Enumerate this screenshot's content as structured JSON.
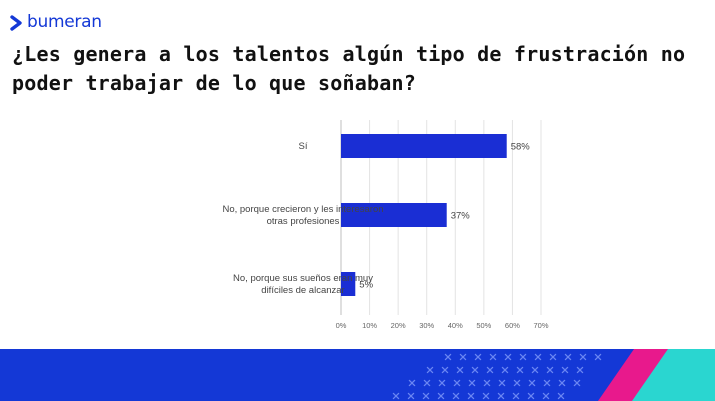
{
  "brand": {
    "name": "bumeran",
    "color": "#1438d6"
  },
  "title": "¿Les genera a los talentos algún tipo de frustración no poder trabajar de lo que soñaban?",
  "chart_data": {
    "type": "bar",
    "orientation": "horizontal",
    "categories": [
      [
        "Sí"
      ],
      [
        "No, porque crecieron y les interesaron",
        "otras profesiones"
      ],
      [
        "No, porque sus sueños eran muy",
        "difíciles de alcanzar"
      ]
    ],
    "values": [
      58,
      37,
      5
    ],
    "data_labels": [
      "58%",
      "37%",
      "5%"
    ],
    "xlim": [
      0,
      70
    ],
    "x_ticks": [
      0,
      10,
      20,
      30,
      40,
      50,
      60,
      70
    ],
    "x_tick_labels": [
      "0%",
      "10%",
      "20%",
      "30%",
      "40%",
      "50%",
      "60%",
      "70%"
    ],
    "grid": true,
    "bar_color": "#1a2ed4",
    "title": "",
    "xlabel": "",
    "ylabel": ""
  },
  "footer": {
    "band_color": "#1438d6",
    "accent_magenta": "#e8198c",
    "accent_cyan": "#2ad6d0"
  }
}
